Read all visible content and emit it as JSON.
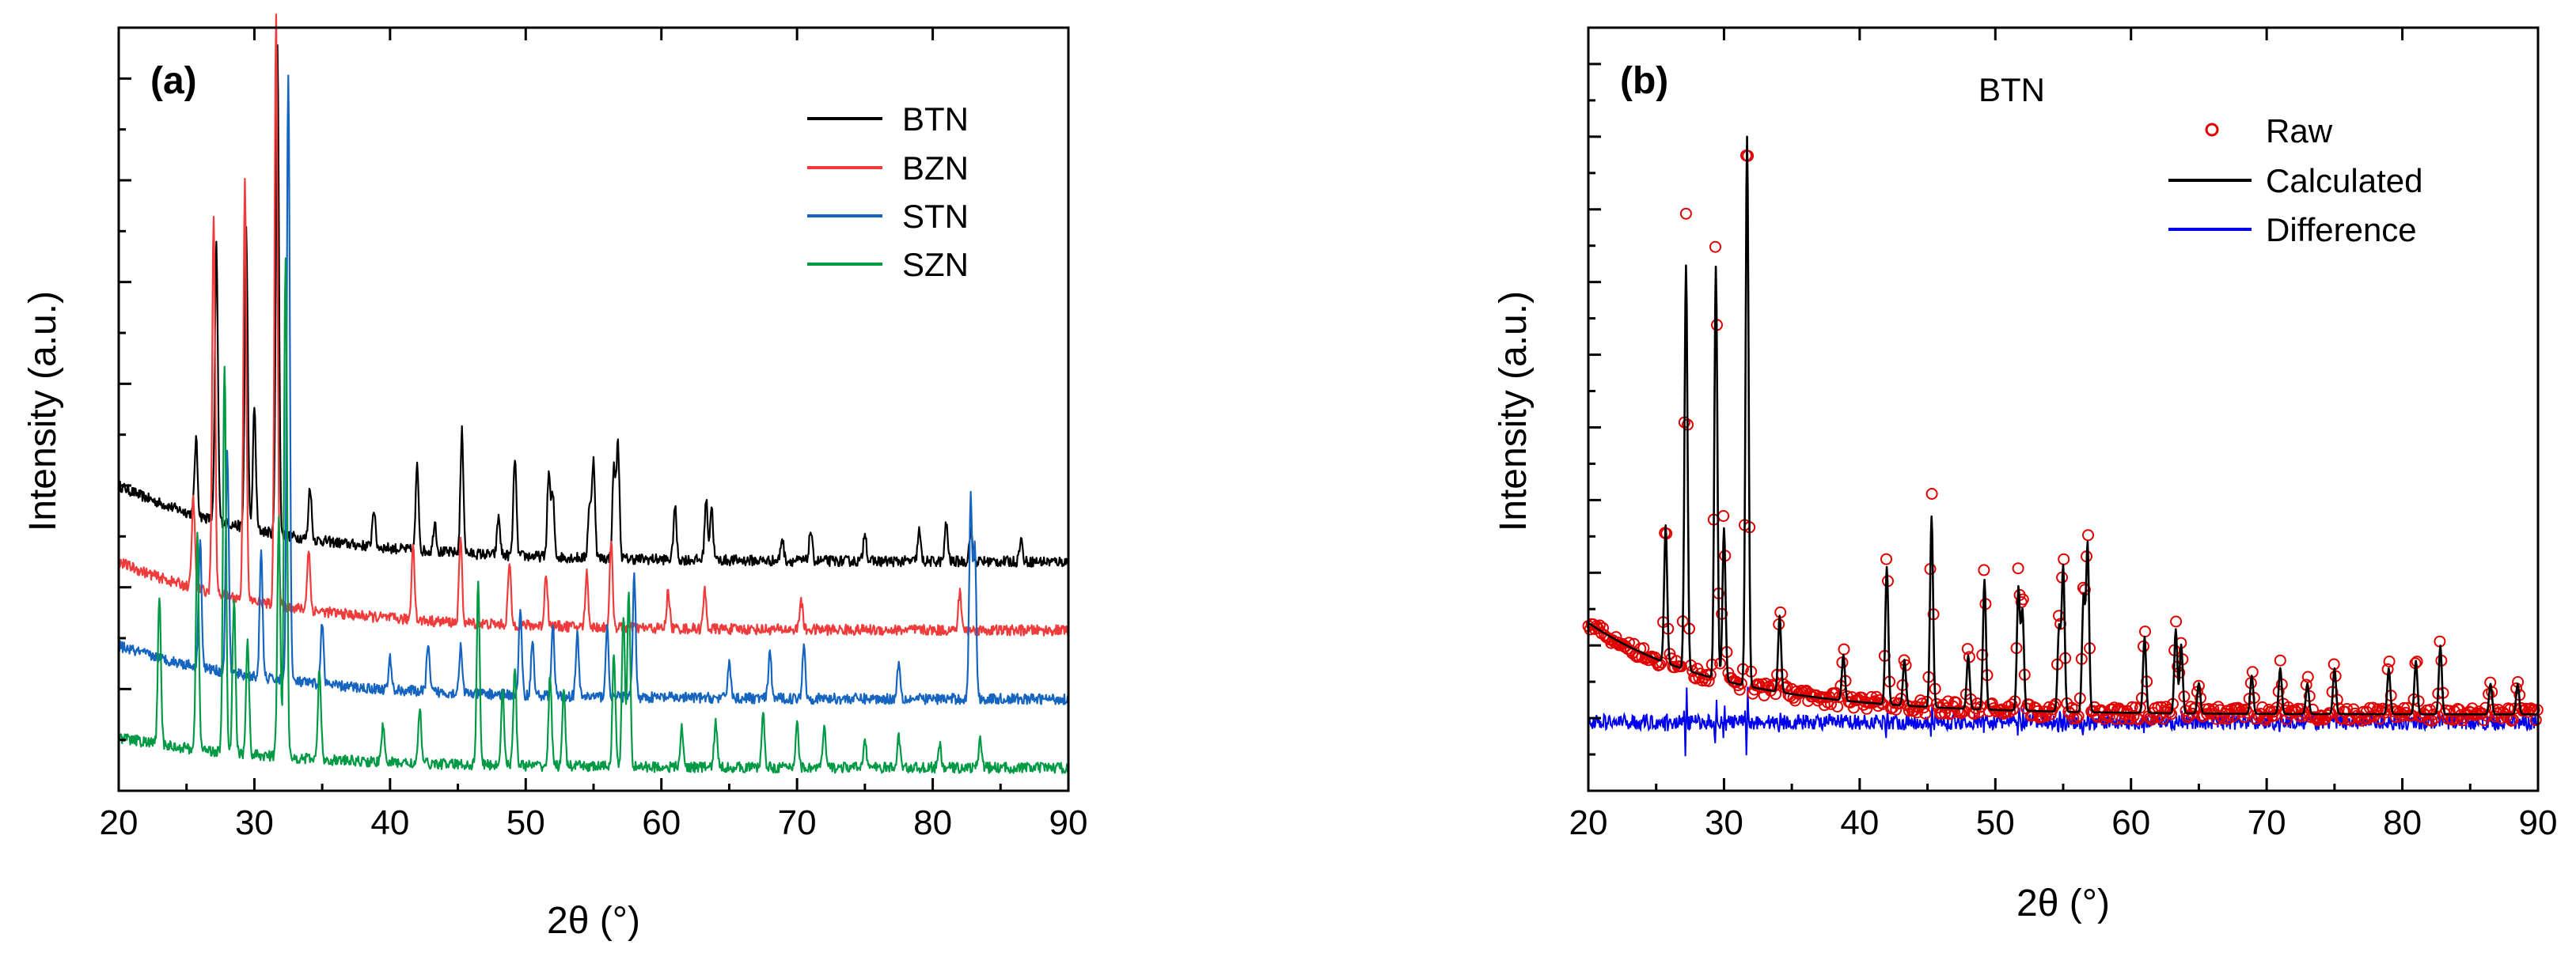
{
  "colors": {
    "BTN": "#000000",
    "BZN": "#ef3b3b",
    "STN": "#1565c0",
    "SZN": "#009944",
    "raw": "#e00000",
    "calculated": "#000000",
    "difference": "#0000ee"
  },
  "chart_data": [
    {
      "type": "line",
      "panel_label": "(a)",
      "title": "",
      "xlabel": "2θ (°)",
      "ylabel": "Intensity (a.u.)",
      "xlim": [
        20,
        90
      ],
      "ylim": [
        0,
        100
      ],
      "xticks": [
        20,
        30,
        40,
        50,
        60,
        70,
        80,
        90
      ],
      "legend_position": "top-right",
      "series": [
        {
          "name": "BTN",
          "offset": 30,
          "base_start": 40,
          "base_end": 30,
          "peaks": [
            [
              25.7,
              10
            ],
            [
              27.2,
              36
            ],
            [
              29.4,
              39
            ],
            [
              30.0,
              16
            ],
            [
              31.7,
              64
            ],
            [
              34.1,
              7
            ],
            [
              38.8,
              5
            ],
            [
              42.0,
              11
            ],
            [
              43.3,
              4
            ],
            [
              45.3,
              16
            ],
            [
              48.0,
              5
            ],
            [
              49.2,
              13
            ],
            [
              51.7,
              11
            ],
            [
              52.0,
              8
            ],
            [
              54.7,
              7
            ],
            [
              55.0,
              13
            ],
            [
              56.5,
              12
            ],
            [
              56.8,
              15
            ],
            [
              61.0,
              7
            ],
            [
              63.3,
              8
            ],
            [
              63.7,
              7
            ],
            [
              68.9,
              3
            ],
            [
              71.0,
              4
            ],
            [
              75.0,
              4
            ],
            [
              79.0,
              4
            ],
            [
              81.0,
              5
            ],
            [
              82.8,
              4
            ],
            [
              86.5,
              3
            ]
          ]
        },
        {
          "name": "BZN",
          "offset": 21,
          "base_start": 30,
          "base_end": 21,
          "peaks": [
            [
              25.5,
              12
            ],
            [
              27.0,
              49
            ],
            [
              29.3,
              55
            ],
            [
              31.6,
              78
            ],
            [
              34.0,
              8
            ],
            [
              41.7,
              10
            ],
            [
              45.2,
              11
            ],
            [
              48.8,
              8
            ],
            [
              51.5,
              7
            ],
            [
              54.5,
              7
            ],
            [
              56.3,
              11
            ],
            [
              60.5,
              5
            ],
            [
              63.2,
              5
            ],
            [
              70.3,
              4
            ],
            [
              82.0,
              5
            ]
          ]
        },
        {
          "name": "STN",
          "offset": 12,
          "base_start": 19,
          "base_end": 12,
          "peaks": [
            [
              26.0,
              17
            ],
            [
              28.0,
              29
            ],
            [
              30.5,
              16
            ],
            [
              32.5,
              80
            ],
            [
              35.0,
              8
            ],
            [
              40.0,
              4
            ],
            [
              42.8,
              6
            ],
            [
              45.2,
              6
            ],
            [
              49.6,
              11
            ],
            [
              50.5,
              7
            ],
            [
              52.0,
              9
            ],
            [
              53.8,
              8
            ],
            [
              56.0,
              9
            ],
            [
              58.0,
              16
            ],
            [
              65.0,
              5
            ],
            [
              68.0,
              6
            ],
            [
              70.5,
              7
            ],
            [
              77.5,
              5
            ],
            [
              82.8,
              26
            ],
            [
              83.1,
              20
            ]
          ]
        },
        {
          "name": "SZN",
          "offset": 3,
          "base_start": 7,
          "base_end": 3,
          "peaks": [
            [
              23.0,
              19
            ],
            [
              25.8,
              28
            ],
            [
              27.8,
              51
            ],
            [
              28.5,
              20
            ],
            [
              29.5,
              15
            ],
            [
              31.8,
              31
            ],
            [
              32.3,
              66
            ],
            [
              34.8,
              12
            ],
            [
              39.5,
              5
            ],
            [
              42.2,
              7
            ],
            [
              46.5,
              24
            ],
            [
              48.3,
              10
            ],
            [
              49.2,
              13
            ],
            [
              51.8,
              12
            ],
            [
              52.8,
              10
            ],
            [
              56.5,
              15
            ],
            [
              57.2,
              20
            ],
            [
              57.6,
              23
            ],
            [
              61.5,
              5
            ],
            [
              64.0,
              6
            ],
            [
              67.5,
              7
            ],
            [
              70.0,
              6
            ],
            [
              72.0,
              5
            ],
            [
              75.0,
              4
            ],
            [
              77.5,
              4
            ],
            [
              80.5,
              3
            ],
            [
              83.5,
              4
            ]
          ]
        }
      ]
    },
    {
      "type": "line",
      "panel_label": "(b)",
      "title": "BTN",
      "xlabel": "2θ (°)",
      "ylabel": "Intensity (a.u.)",
      "xlim": [
        20,
        90
      ],
      "ylim": [
        0,
        100
      ],
      "xticks": [
        20,
        30,
        40,
        50,
        60,
        70,
        80,
        90
      ],
      "legend_position": "top-right",
      "legend": [
        "Raw",
        "Calculated",
        "Difference"
      ],
      "calc_baseline": [
        22,
        10
      ],
      "difference_level": 9,
      "peaks": [
        [
          25.7,
          18
        ],
        [
          27.2,
          53
        ],
        [
          29.4,
          54
        ],
        [
          30.0,
          20
        ],
        [
          31.7,
          72
        ],
        [
          34.1,
          10
        ],
        [
          38.8,
          6
        ],
        [
          42.0,
          18
        ],
        [
          43.3,
          6
        ],
        [
          45.3,
          25
        ],
        [
          48.0,
          7
        ],
        [
          49.2,
          17
        ],
        [
          51.7,
          16
        ],
        [
          52.0,
          13
        ],
        [
          54.7,
          11
        ],
        [
          55.0,
          19
        ],
        [
          56.5,
          15
        ],
        [
          56.8,
          22
        ],
        [
          61.0,
          10
        ],
        [
          63.3,
          11
        ],
        [
          63.7,
          9
        ],
        [
          65.0,
          4
        ],
        [
          68.9,
          5
        ],
        [
          71.0,
          6
        ],
        [
          73.0,
          4
        ],
        [
          75.0,
          6
        ],
        [
          79.0,
          6
        ],
        [
          81.0,
          7
        ],
        [
          82.8,
          9
        ],
        [
          86.5,
          4
        ],
        [
          88.5,
          4
        ]
      ]
    }
  ]
}
